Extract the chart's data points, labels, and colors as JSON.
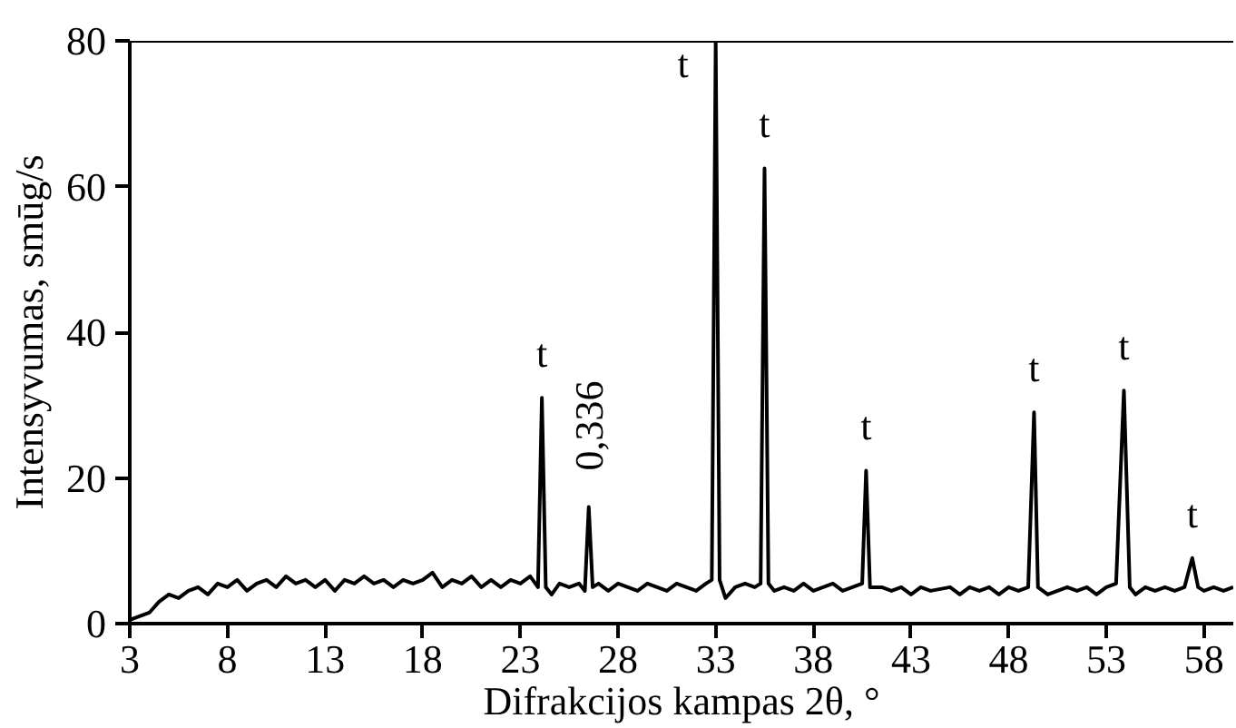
{
  "chart_data": {
    "type": "line",
    "xlabel": "Difrakcijos kampas 2θ, °",
    "ylabel": "Intensyvumas, smūg/s",
    "x": [
      3.0,
      3.5,
      4.0,
      4.5,
      5.0,
      5.5,
      6.0,
      6.5,
      7.0,
      7.5,
      8.0,
      8.5,
      9.0,
      9.5,
      10.0,
      10.5,
      11.0,
      11.5,
      12.0,
      12.5,
      13.0,
      13.5,
      14.0,
      14.5,
      15.0,
      15.5,
      16.0,
      16.5,
      17.0,
      17.5,
      18.0,
      18.5,
      19.0,
      19.5,
      20.0,
      20.5,
      21.0,
      21.5,
      22.0,
      22.5,
      23.0,
      23.5,
      23.9,
      24.1,
      24.3,
      24.6,
      25.0,
      25.5,
      26.0,
      26.3,
      26.5,
      26.7,
      27.0,
      27.5,
      28.0,
      28.5,
      29.0,
      29.5,
      30.0,
      30.5,
      31.0,
      31.5,
      32.0,
      32.5,
      32.8,
      33.0,
      33.2,
      33.5,
      34.0,
      34.5,
      35.0,
      35.3,
      35.5,
      35.7,
      36.0,
      36.5,
      37.0,
      37.5,
      38.0,
      38.5,
      39.0,
      39.5,
      40.0,
      40.5,
      40.7,
      40.9,
      41.5,
      42.0,
      42.5,
      43.0,
      43.5,
      44.0,
      45.0,
      45.5,
      46.0,
      46.5,
      47.0,
      47.5,
      48.0,
      48.5,
      49.0,
      49.3,
      49.5,
      50.0,
      50.5,
      51.0,
      51.5,
      52.0,
      52.5,
      53.0,
      53.5,
      53.9,
      54.2,
      54.5,
      55.0,
      55.5,
      56.0,
      56.5,
      57.0,
      57.4,
      57.7,
      58.0,
      58.5,
      59.0,
      59.5
    ],
    "series": [
      {
        "color": "#000000",
        "values": [
          0.5,
          1,
          1.5,
          3,
          4,
          3.5,
          4.5,
          5,
          4,
          5.5,
          5,
          6,
          4.5,
          5.5,
          6,
          5,
          6.5,
          5.5,
          6,
          5,
          6,
          4.5,
          6,
          5.5,
          6.5,
          5.5,
          6,
          5,
          6,
          5.5,
          6,
          7,
          5,
          6,
          5.5,
          6.5,
          5,
          6,
          5,
          6,
          5.5,
          6.5,
          5,
          31,
          5,
          4,
          5.5,
          5,
          5.5,
          4.5,
          16,
          5,
          5.5,
          4.5,
          5.5,
          5,
          4.5,
          5.5,
          5,
          4.5,
          5.5,
          5,
          4.5,
          5.5,
          6,
          80,
          6,
          3.5,
          5,
          5.5,
          5,
          5.5,
          62.5,
          5.5,
          4.5,
          5,
          4.5,
          5.5,
          4.5,
          5,
          5.5,
          4.5,
          5,
          5.5,
          21,
          5,
          5,
          4.5,
          5,
          4,
          5,
          4.5,
          5,
          4,
          5,
          4.5,
          5,
          4,
          5,
          4.5,
          5,
          29,
          5,
          4,
          4.5,
          5,
          4.5,
          5,
          4,
          5,
          5.5,
          32,
          5,
          4,
          5,
          4.5,
          5,
          4.5,
          5,
          9,
          5,
          4.5,
          5,
          4.5,
          5
        ]
      }
    ],
    "xlim": [
      3,
      59.5
    ],
    "ylim": [
      0,
      80
    ],
    "xticks": [
      3,
      8,
      13,
      18,
      23,
      28,
      33,
      38,
      43,
      48,
      53,
      58
    ],
    "yticks": [
      0,
      20,
      40,
      60,
      80
    ],
    "grid": false,
    "marker": "none",
    "line_style": "solid",
    "annotations": [
      {
        "text": "t",
        "x": 24.1,
        "y": 31
      },
      {
        "text": "0,336",
        "x": 26.5,
        "y": 16
      },
      {
        "text": "t",
        "x": 33.0,
        "y": 80
      },
      {
        "text": "t",
        "x": 35.5,
        "y": 62.5
      },
      {
        "text": "t",
        "x": 40.7,
        "y": 21
      },
      {
        "text": "t",
        "x": 49.3,
        "y": 29
      },
      {
        "text": "t",
        "x": 53.9,
        "y": 32
      },
      {
        "text": "t",
        "x": 57.4,
        "y": 9
      }
    ]
  }
}
